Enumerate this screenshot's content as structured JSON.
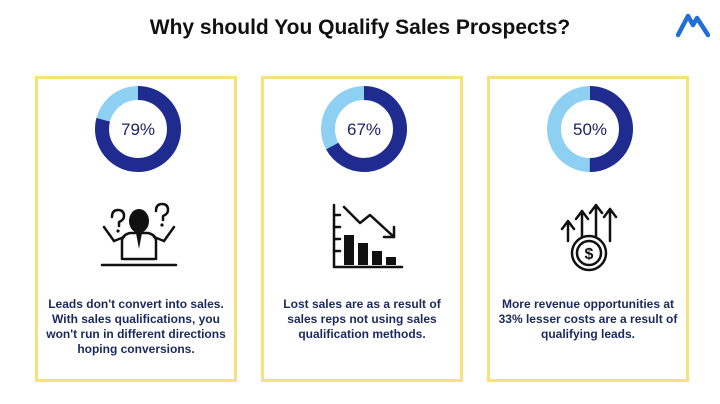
{
  "title": "Why should You Qualify Sales Prospects?",
  "colors": {
    "card_border": "#f5e27a",
    "ring_dark": "#1f2b8f",
    "ring_light": "#8dd0f2",
    "text": "#1a2a5c",
    "logo": "#1f6fd6"
  },
  "logo_icon": "mountain-logo-icon",
  "cards": [
    {
      "percent": 79,
      "percent_label": "79%",
      "icon": "confused-person-icon",
      "text": "Leads don't convert into sales. With sales qualifications, you won't run in different directions hoping conversions."
    },
    {
      "percent": 67,
      "percent_label": "67%",
      "icon": "declining-bar-chart-icon",
      "text": "Lost sales are as a result of sales reps not using sales qualification methods."
    },
    {
      "percent": 50,
      "percent_label": "50%",
      "icon": "dollar-growth-arrows-icon",
      "text": "More revenue opportunities at 33% lesser costs are a result of qualifying leads."
    }
  ]
}
